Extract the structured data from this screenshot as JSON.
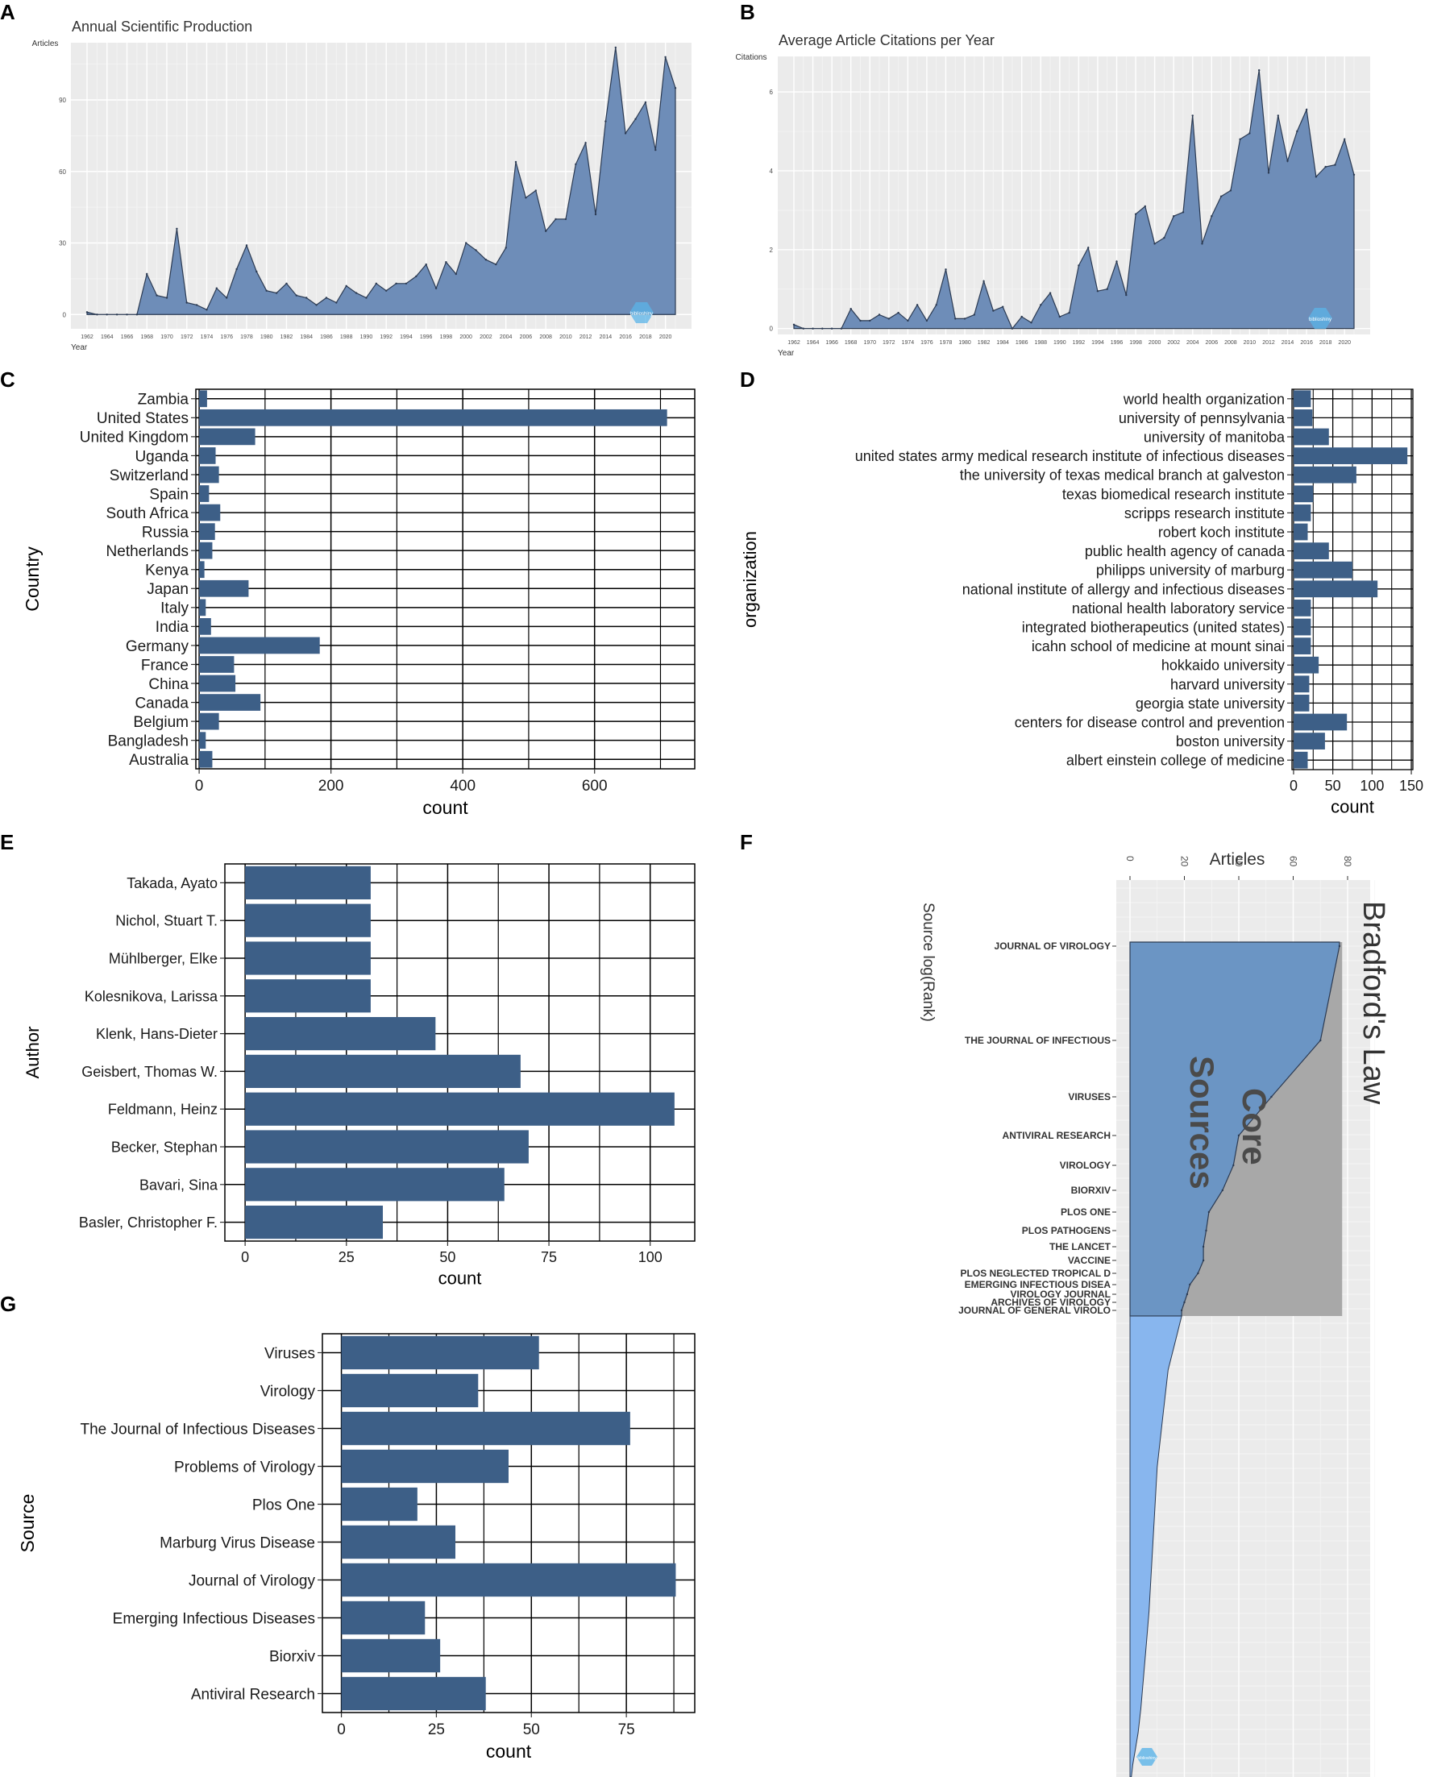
{
  "panels": [
    {
      "letter": "A",
      "type": "area",
      "title": "Annual Scientific Production",
      "xlabel": "Year",
      "ylabel": "Articles",
      "xticks": [
        "1962",
        "1964",
        "1966",
        "1968",
        "1970",
        "1972",
        "1974",
        "1976",
        "1978",
        "1980",
        "1982",
        "1984",
        "1986",
        "1988",
        "1990",
        "1992",
        "1994",
        "1996",
        "1998",
        "2000",
        "2002",
        "2004",
        "2006",
        "2008",
        "2010",
        "2012",
        "2014",
        "2016",
        "2018",
        "2020"
      ],
      "yticks": [
        "0",
        "30",
        "60",
        "90"
      ],
      "ylim": [
        -6,
        114
      ],
      "x": [
        1962,
        1963,
        1964,
        1965,
        1966,
        1967,
        1968,
        1969,
        1970,
        1971,
        1972,
        1973,
        1974,
        1975,
        1976,
        1977,
        1978,
        1979,
        1980,
        1981,
        1982,
        1983,
        1984,
        1985,
        1986,
        1987,
        1988,
        1989,
        1990,
        1991,
        1992,
        1993,
        1994,
        1995,
        1996,
        1997,
        1998,
        1999,
        2000,
        2001,
        2002,
        2003,
        2004,
        2005,
        2006,
        2007,
        2008,
        2009,
        2010,
        2011,
        2012,
        2013,
        2014,
        2015,
        2016,
        2017,
        2018,
        2019,
        2020,
        2021
      ],
      "values": [
        1,
        0,
        0,
        0,
        0,
        0,
        17,
        8,
        7,
        36,
        5,
        4,
        2,
        11,
        7,
        19,
        29,
        18,
        10,
        9,
        13,
        8,
        7,
        4,
        7,
        5,
        12,
        9,
        7,
        13,
        10,
        13,
        13,
        16,
        21,
        11,
        22,
        17,
        30,
        27,
        23,
        21,
        28,
        64,
        49,
        52,
        35,
        40,
        40,
        63,
        72,
        42,
        81,
        112,
        76,
        82,
        89,
        69,
        108,
        95
      ],
      "fill": "#6e8db8",
      "watermark": "biblioshiny"
    },
    {
      "letter": "B",
      "type": "area",
      "title": "Average Article Citations per Year",
      "xlabel": "Year",
      "ylabel": "Citations",
      "xticks": [
        "1962",
        "1964",
        "1966",
        "1968",
        "1970",
        "1972",
        "1974",
        "1976",
        "1978",
        "1980",
        "1982",
        "1984",
        "1986",
        "1988",
        "1990",
        "1992",
        "1994",
        "1996",
        "1998",
        "2000",
        "2002",
        "2004",
        "2006",
        "2008",
        "2010",
        "2012",
        "2014",
        "2016",
        "2018",
        "2020"
      ],
      "yticks": [
        "0",
        "2",
        "4",
        "6"
      ],
      "ylim": [
        -0.15,
        6.9
      ],
      "x": [
        1962,
        1963,
        1964,
        1965,
        1966,
        1967,
        1968,
        1969,
        1970,
        1971,
        1972,
        1973,
        1974,
        1975,
        1976,
        1977,
        1978,
        1979,
        1980,
        1981,
        1982,
        1983,
        1984,
        1985,
        1986,
        1987,
        1988,
        1989,
        1990,
        1991,
        1992,
        1993,
        1994,
        1995,
        1996,
        1997,
        1998,
        1999,
        2000,
        2001,
        2002,
        2003,
        2004,
        2005,
        2006,
        2007,
        2008,
        2009,
        2010,
        2011,
        2012,
        2013,
        2014,
        2015,
        2016,
        2017,
        2018,
        2019,
        2020,
        2021
      ],
      "values": [
        0.1,
        0,
        0,
        0,
        0,
        0,
        0.5,
        0.2,
        0.2,
        0.35,
        0.25,
        0.4,
        0.2,
        0.6,
        0.2,
        0.6,
        1.5,
        0.25,
        0.25,
        0.35,
        1.2,
        0.45,
        0.55,
        0,
        0.3,
        0.15,
        0.6,
        0.9,
        0.3,
        0.4,
        1.6,
        2.05,
        0.95,
        1.0,
        1.7,
        0.85,
        2.9,
        3.1,
        2.15,
        2.3,
        2.85,
        2.95,
        5.4,
        2.15,
        2.85,
        3.35,
        3.5,
        4.8,
        4.95,
        6.55,
        3.95,
        5.4,
        4.25,
        5.0,
        5.55,
        3.85,
        4.1,
        4.15,
        4.8,
        3.9
      ],
      "fill": "#6e8db8",
      "watermark": "biblioshiny"
    },
    {
      "letter": "C",
      "type": "bar",
      "orientation": "horizontal",
      "xlabel": "count",
      "ylabel": "Country",
      "categories": [
        "Zambia",
        "United States",
        "United Kingdom",
        "Uganda",
        "Switzerland",
        "Spain",
        "South Africa",
        "Russia",
        "Netherlands",
        "Kenya",
        "Japan",
        "Italy",
        "India",
        "Germany",
        "France",
        "China",
        "Canada",
        "Belgium",
        "Bangladesh",
        "Australia"
      ],
      "values": [
        12,
        710,
        85,
        25,
        30,
        15,
        32,
        24,
        20,
        8,
        75,
        10,
        18,
        183,
        53,
        55,
        93,
        30,
        10,
        20
      ],
      "xticks": [
        0,
        200,
        400,
        600
      ],
      "xticklabels": [
        "0",
        "200",
        "400",
        "600"
      ],
      "xlim": [
        -5,
        752
      ],
      "bar_color": "#3d5f87"
    },
    {
      "letter": "D",
      "type": "bar",
      "orientation": "horizontal",
      "xlabel": "count",
      "ylabel": "organization",
      "categories": [
        "world health organization",
        "university of pennsylvania",
        "university of manitoba",
        "united states army medical research institute of infectious diseases",
        "the university of texas medical branch at galveston",
        "texas biomedical research institute",
        "scripps research institute",
        "robert koch institute",
        "public health agency of canada",
        "philipps university of marburg",
        "national institute of allergy and infectious diseases",
        "national health laboratory service",
        "integrated biotherapeutics (united states)",
        "icahn school of medicine at mount sinai",
        "hokkaido university",
        "harvard university",
        "georgia state university",
        "centers for disease control and prevention",
        "boston university",
        "albert einstein college of medicine"
      ],
      "values": [
        22,
        24,
        45,
        145,
        80,
        25,
        22,
        18,
        45,
        75,
        107,
        22,
        22,
        22,
        32,
        20,
        20,
        68,
        40,
        18
      ],
      "xticks": [
        0,
        50,
        100,
        150
      ],
      "xticklabels": [
        "0",
        "50",
        "100",
        "150"
      ],
      "xlim": [
        -2,
        152
      ],
      "bar_color": "#3d5f87"
    },
    {
      "letter": "E",
      "type": "bar",
      "orientation": "horizontal",
      "xlabel": "count",
      "ylabel": "Author",
      "categories": [
        "Takada, Ayato",
        "Nichol, Stuart T.",
        "Mühlberger, Elke",
        "Kolesnikova, Larissa",
        "Klenk, Hans-Dieter",
        "Geisbert, Thomas W.",
        "Feldmann, Heinz",
        "Becker, Stephan",
        "Bavari, Sina",
        "Basler, Christopher F."
      ],
      "values": [
        31,
        31,
        31,
        31,
        47,
        68,
        106,
        70,
        64,
        34
      ],
      "xticks": [
        0,
        25,
        50,
        75,
        100
      ],
      "xticklabels": [
        "0",
        "25",
        "50",
        "75",
        "100"
      ],
      "xlim": [
        -5,
        111
      ],
      "bar_color": "#3d5f87"
    },
    {
      "letter": "F",
      "type": "area",
      "title": "Bradford's Law",
      "xlabel": "Articles",
      "ylabel": "Source log(Rank)",
      "annotation": "Core Sources",
      "xticks": [
        "0",
        "20",
        "40",
        "60",
        "80"
      ],
      "sources": [
        "JOURNAL OF VIROLOGY",
        "THE JOURNAL OF INFECTIOUS",
        "VIRUSES",
        "ANTIVIRAL RESEARCH",
        "VIROLOGY",
        "BIORXIV",
        "PLOS ONE",
        "PLOS PATHOGENS",
        "THE LANCET",
        "VACCINE",
        "PLOS NEGLECTED TROPICAL D",
        "EMERGING INFECTIOUS DISEA",
        "VIROLOGY JOURNAL",
        "ARCHIVES OF VIROLOGY",
        "JOURNAL OF GENERAL VIROLO"
      ],
      "values": [
        77,
        70,
        52,
        40,
        38,
        34,
        29,
        28,
        27,
        27,
        25,
        22,
        21,
        20,
        19
      ],
      "core_fill": "#6b95c4",
      "tail_fill": "#88b6ee",
      "watermark": "biblioshiny"
    },
    {
      "letter": "G",
      "type": "bar",
      "orientation": "horizontal",
      "xlabel": "count",
      "ylabel": "Source",
      "categories": [
        "Viruses",
        "Virology",
        "The Journal of Infectious Diseases",
        "Problems of Virology",
        "Plos One",
        "Marburg Virus Disease",
        "Journal of Virology",
        "Emerging Infectious Diseases",
        "Biorxiv",
        "Antiviral Research"
      ],
      "values": [
        52,
        36,
        76,
        44,
        20,
        30,
        88,
        22,
        26,
        38
      ],
      "xticks": [
        0,
        25,
        50,
        75
      ],
      "xticklabels": [
        "0",
        "25",
        "50",
        "75"
      ],
      "xlim": [
        -5,
        93
      ],
      "bar_color": "#3d5f87"
    }
  ]
}
